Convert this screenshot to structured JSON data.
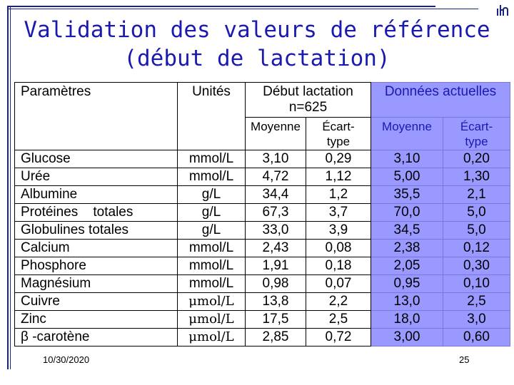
{
  "slide": {
    "title_line1": "Validation des valeurs de référence",
    "title_line2": "(début de lactation)",
    "footer_date": "10/30/2020",
    "page_number": "25"
  },
  "table": {
    "headers": {
      "param": "Paramètres",
      "units": "Unités",
      "debut_line1": "Début lactation",
      "debut_line2": "n=625",
      "actuelles": "Données  actuelles"
    },
    "subheaders": {
      "moyenne": "Moyenne",
      "ecart_line1": "Écart-",
      "ecart_line2": "type"
    },
    "rows": [
      {
        "param": "Glucose",
        "unit": "mmol/L",
        "m1": "3,10",
        "e1": "0,29",
        "m2": "3,10",
        "e2": "0,20"
      },
      {
        "param": "Urée",
        "unit": "mmol/L",
        "m1": "4,72",
        "e1": "1,12",
        "m2": "5,00",
        "e2": "1,30"
      },
      {
        "param": "Albumine",
        "unit": "g/L",
        "m1": "34,4",
        "e1": "1,2",
        "m2": "35,5",
        "e2": "2,1"
      },
      {
        "param": "Protéines    totales",
        "unit": "g/L",
        "m1": "67,3",
        "e1": "3,7",
        "m2": "70,0",
        "e2": "5,0"
      },
      {
        "param": "Globulines totales",
        "unit": "g/L",
        "m1": "33,0",
        "e1": "3,9",
        "m2": "34,5",
        "e2": "5,0"
      },
      {
        "param": "Calcium",
        "unit": "mmol/L",
        "m1": "2,43",
        "e1": "0,08",
        "m2": "2,38",
        "e2": "0,12"
      },
      {
        "param": "Phosphore",
        "unit": "mmol/L",
        "m1": "1,91",
        "e1": "0,18",
        "m2": "2,05",
        "e2": "0,30"
      },
      {
        "param": "Magnésium",
        "unit": "mmol/L",
        "m1": "0,98",
        "e1": "0,07",
        "m2": "0,95",
        "e2": "0,10"
      },
      {
        "param": "Cuivre",
        "unit": "μmol/L",
        "m1": "13,8",
        "e1": "2,2",
        "m2": "13,0",
        "e2": "2,5"
      },
      {
        "param": "Zinc",
        "unit": "μmol/L",
        "m1": "17,5",
        "e1": "2,5",
        "m2": "18,0",
        "e2": "3,0"
      },
      {
        "param": "β -carotène",
        "unit": "μmol/L",
        "m1": "2,85",
        "e1": "0,72",
        "m2": "3,00",
        "e2": "0,60"
      }
    ]
  },
  "colors": {
    "title": "#1a1ab0",
    "highlight": "#9999ff"
  }
}
